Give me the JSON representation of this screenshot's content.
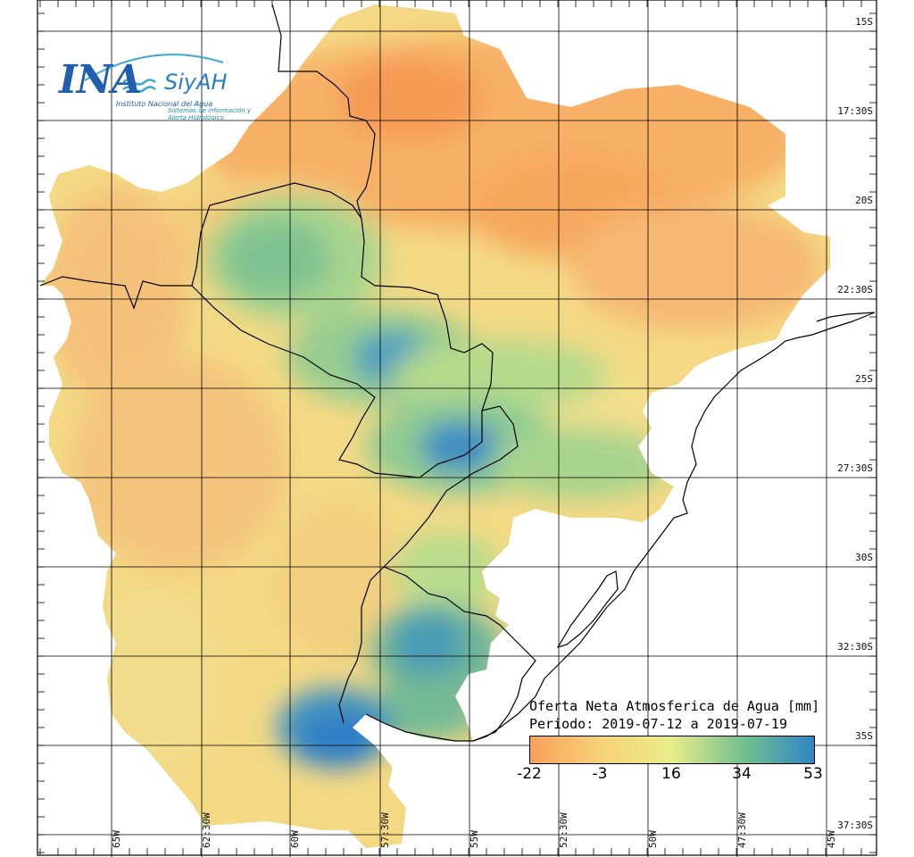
{
  "logo": {
    "brand": "INA",
    "product": "SiyAH",
    "institute": "Instituto Nacional del Agua",
    "system": "Sistemas de información y Alerta Hidrológico"
  },
  "map": {
    "latitude_labels": [
      "15S",
      "17:30S",
      "20S",
      "22:30S",
      "25S",
      "27:30S",
      "30S",
      "32:30S",
      "35S",
      "37:30S"
    ],
    "longitude_labels": [
      "65W",
      "62:30W",
      "60W",
      "57:30W",
      "55W",
      "52:30W",
      "50W",
      "47:30W",
      "45W"
    ],
    "ocean_color": "#ffffff",
    "border_color": "#000000",
    "grid_color": "#000000"
  },
  "legend": {
    "title": "Oferta Neta Atmosferica de Agua [mm]",
    "period": "Periodo: 2019-07-12 a 2019-07-19",
    "ticks": [
      "-22",
      "-3",
      "16",
      "34",
      "53"
    ],
    "colors": [
      "#f7a15a",
      "#f8d27a",
      "#e8ec8a",
      "#74c08e",
      "#2f86c4"
    ]
  }
}
